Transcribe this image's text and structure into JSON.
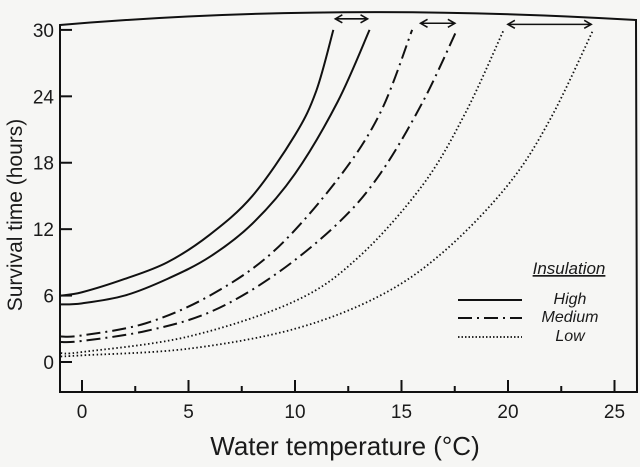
{
  "chart_data": {
    "type": "line",
    "title": "",
    "xlabel": "Water temperature (°C)",
    "xlabel_main": "Water temperature (",
    "xlabel_sup": "o",
    "xlabel_end": "C)",
    "ylabel": "Survival time (hours)",
    "xlim": [
      -1.3,
      25.5
    ],
    "ylim": [
      -3,
      31.5
    ],
    "xticks": [
      0,
      5,
      10,
      15,
      20,
      25
    ],
    "xtick_labels": [
      "0",
      "5",
      "10",
      "15",
      "20",
      "25"
    ],
    "yticks": [
      0,
      6,
      12,
      18,
      24,
      30
    ],
    "ytick_labels": [
      "0",
      "6",
      "12",
      "18",
      "24",
      "30"
    ],
    "grid": false,
    "legend": {
      "title": "Insulation",
      "placement": "right",
      "entries": [
        "High",
        "Medium",
        "Low"
      ]
    },
    "series": [
      {
        "name": "High",
        "bound": "upper",
        "style": "solid",
        "x": [
          -1,
          0,
          2,
          4,
          6,
          8,
          10,
          11,
          11.8
        ],
        "y": [
          6,
          6.3,
          7.5,
          9,
          11.5,
          15,
          20.5,
          24.5,
          30
        ]
      },
      {
        "name": "High",
        "bound": "lower",
        "style": "solid",
        "x": [
          -1,
          0,
          2,
          4,
          6,
          8,
          10,
          12,
          13.5
        ],
        "y": [
          5.2,
          5.3,
          6,
          7.5,
          9.5,
          12.5,
          17,
          23.5,
          30
        ]
      },
      {
        "name": "Medium",
        "bound": "upper",
        "style": "dashdot",
        "x": [
          -1,
          0,
          3,
          6,
          9,
          12,
          14,
          15.5
        ],
        "y": [
          2.3,
          2.4,
          3.5,
          6,
          10,
          16.5,
          22.5,
          30
        ]
      },
      {
        "name": "Medium",
        "bound": "lower",
        "style": "dashdot",
        "x": [
          -1,
          0,
          3,
          6,
          9,
          12,
          14,
          16,
          17.6
        ],
        "y": [
          1.8,
          1.9,
          2.8,
          4.5,
          7.8,
          12.5,
          17,
          23.5,
          30
        ]
      },
      {
        "name": "Low",
        "bound": "upper",
        "style": "dotted",
        "x": [
          -1,
          0,
          5,
          10,
          13,
          16,
          18,
          19.8
        ],
        "y": [
          0.8,
          0.9,
          2.3,
          5.5,
          9.5,
          16,
          22.5,
          30
        ]
      },
      {
        "name": "Low",
        "bound": "lower",
        "style": "dotted",
        "x": [
          -1,
          0,
          5,
          10,
          14,
          17,
          20,
          22,
          24
        ],
        "y": [
          0.5,
          0.6,
          1.2,
          3,
          6,
          10,
          16,
          22,
          30
        ]
      }
    ],
    "annotations": [
      {
        "type": "double-arrow",
        "x_from": 11.8,
        "x_to": 13.5,
        "y": 31
      },
      {
        "type": "double-arrow",
        "x_from": 15.8,
        "x_to": 17.6,
        "y": 30.6
      },
      {
        "type": "double-arrow",
        "x_from": 19.9,
        "x_to": 24.0,
        "y": 30.5
      }
    ]
  }
}
